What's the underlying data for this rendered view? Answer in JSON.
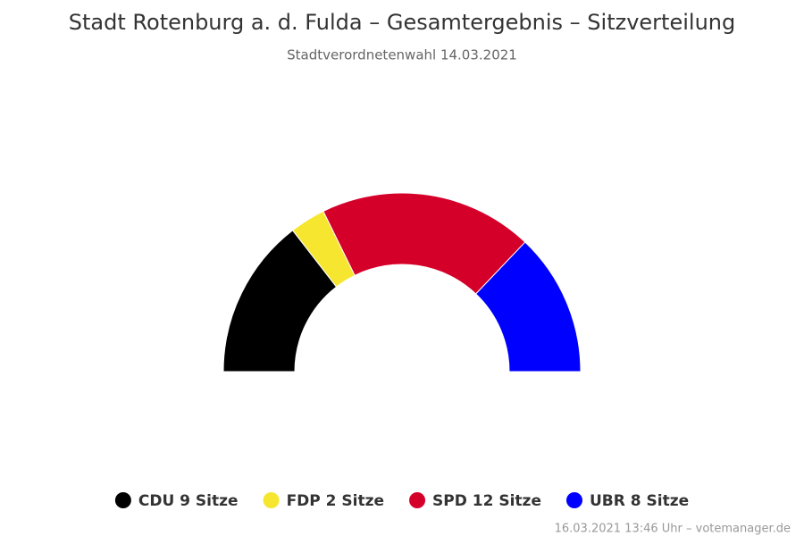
{
  "chart_data": {
    "type": "parliament",
    "title": "Stadt Rotenburg a. d. Fulda – Gesamtergebnis – Sitzverteilung",
    "subtitle": "Stadtverordnetenwahl 14.03.2021",
    "values": [
      9,
      2,
      12,
      8
    ],
    "value_labels": [
      "CDU 9 Sitze",
      "FDP 2 Sitze",
      "SPD 12 Sitze",
      "UBR 8 Sitze"
    ],
    "colors": [
      "#000000",
      "#f7e62f",
      "#d5002a",
      "#0000ff"
    ],
    "credit": "16.03.2021 13:46 Uhr – votemanager.de"
  }
}
